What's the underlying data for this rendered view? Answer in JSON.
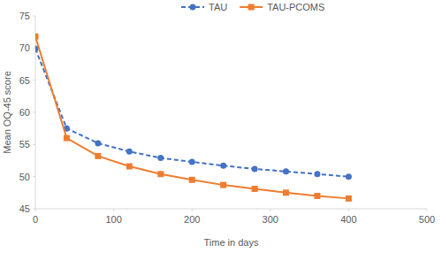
{
  "chart_data": {
    "type": "line",
    "x_label": "Time in days",
    "y_label": "Mean OQ-45 score",
    "x": [
      0,
      40,
      80,
      120,
      160,
      200,
      240,
      280,
      320,
      360,
      400
    ],
    "series": [
      {
        "name": "TAU",
        "color": "#4472c4",
        "line_style": "dashed",
        "marker": "circle",
        "values": [
          69.9,
          57.5,
          55.2,
          53.9,
          52.9,
          52.3,
          51.7,
          51.2,
          50.8,
          50.4,
          50.0
        ]
      },
      {
        "name": "TAU-PCOMS",
        "color": "#ed7d31",
        "line_style": "solid",
        "marker": "square",
        "values": [
          71.8,
          56.0,
          53.2,
          51.6,
          50.4,
          49.5,
          48.7,
          48.1,
          47.5,
          47.0,
          46.6
        ]
      }
    ],
    "xlim": [
      0,
      500
    ],
    "xticks": [
      0,
      100,
      200,
      300,
      400,
      500
    ],
    "ylim": [
      45,
      75
    ],
    "yticks": [
      45,
      50,
      55,
      60,
      65,
      70,
      75
    ],
    "grid": false,
    "legend": "top"
  }
}
